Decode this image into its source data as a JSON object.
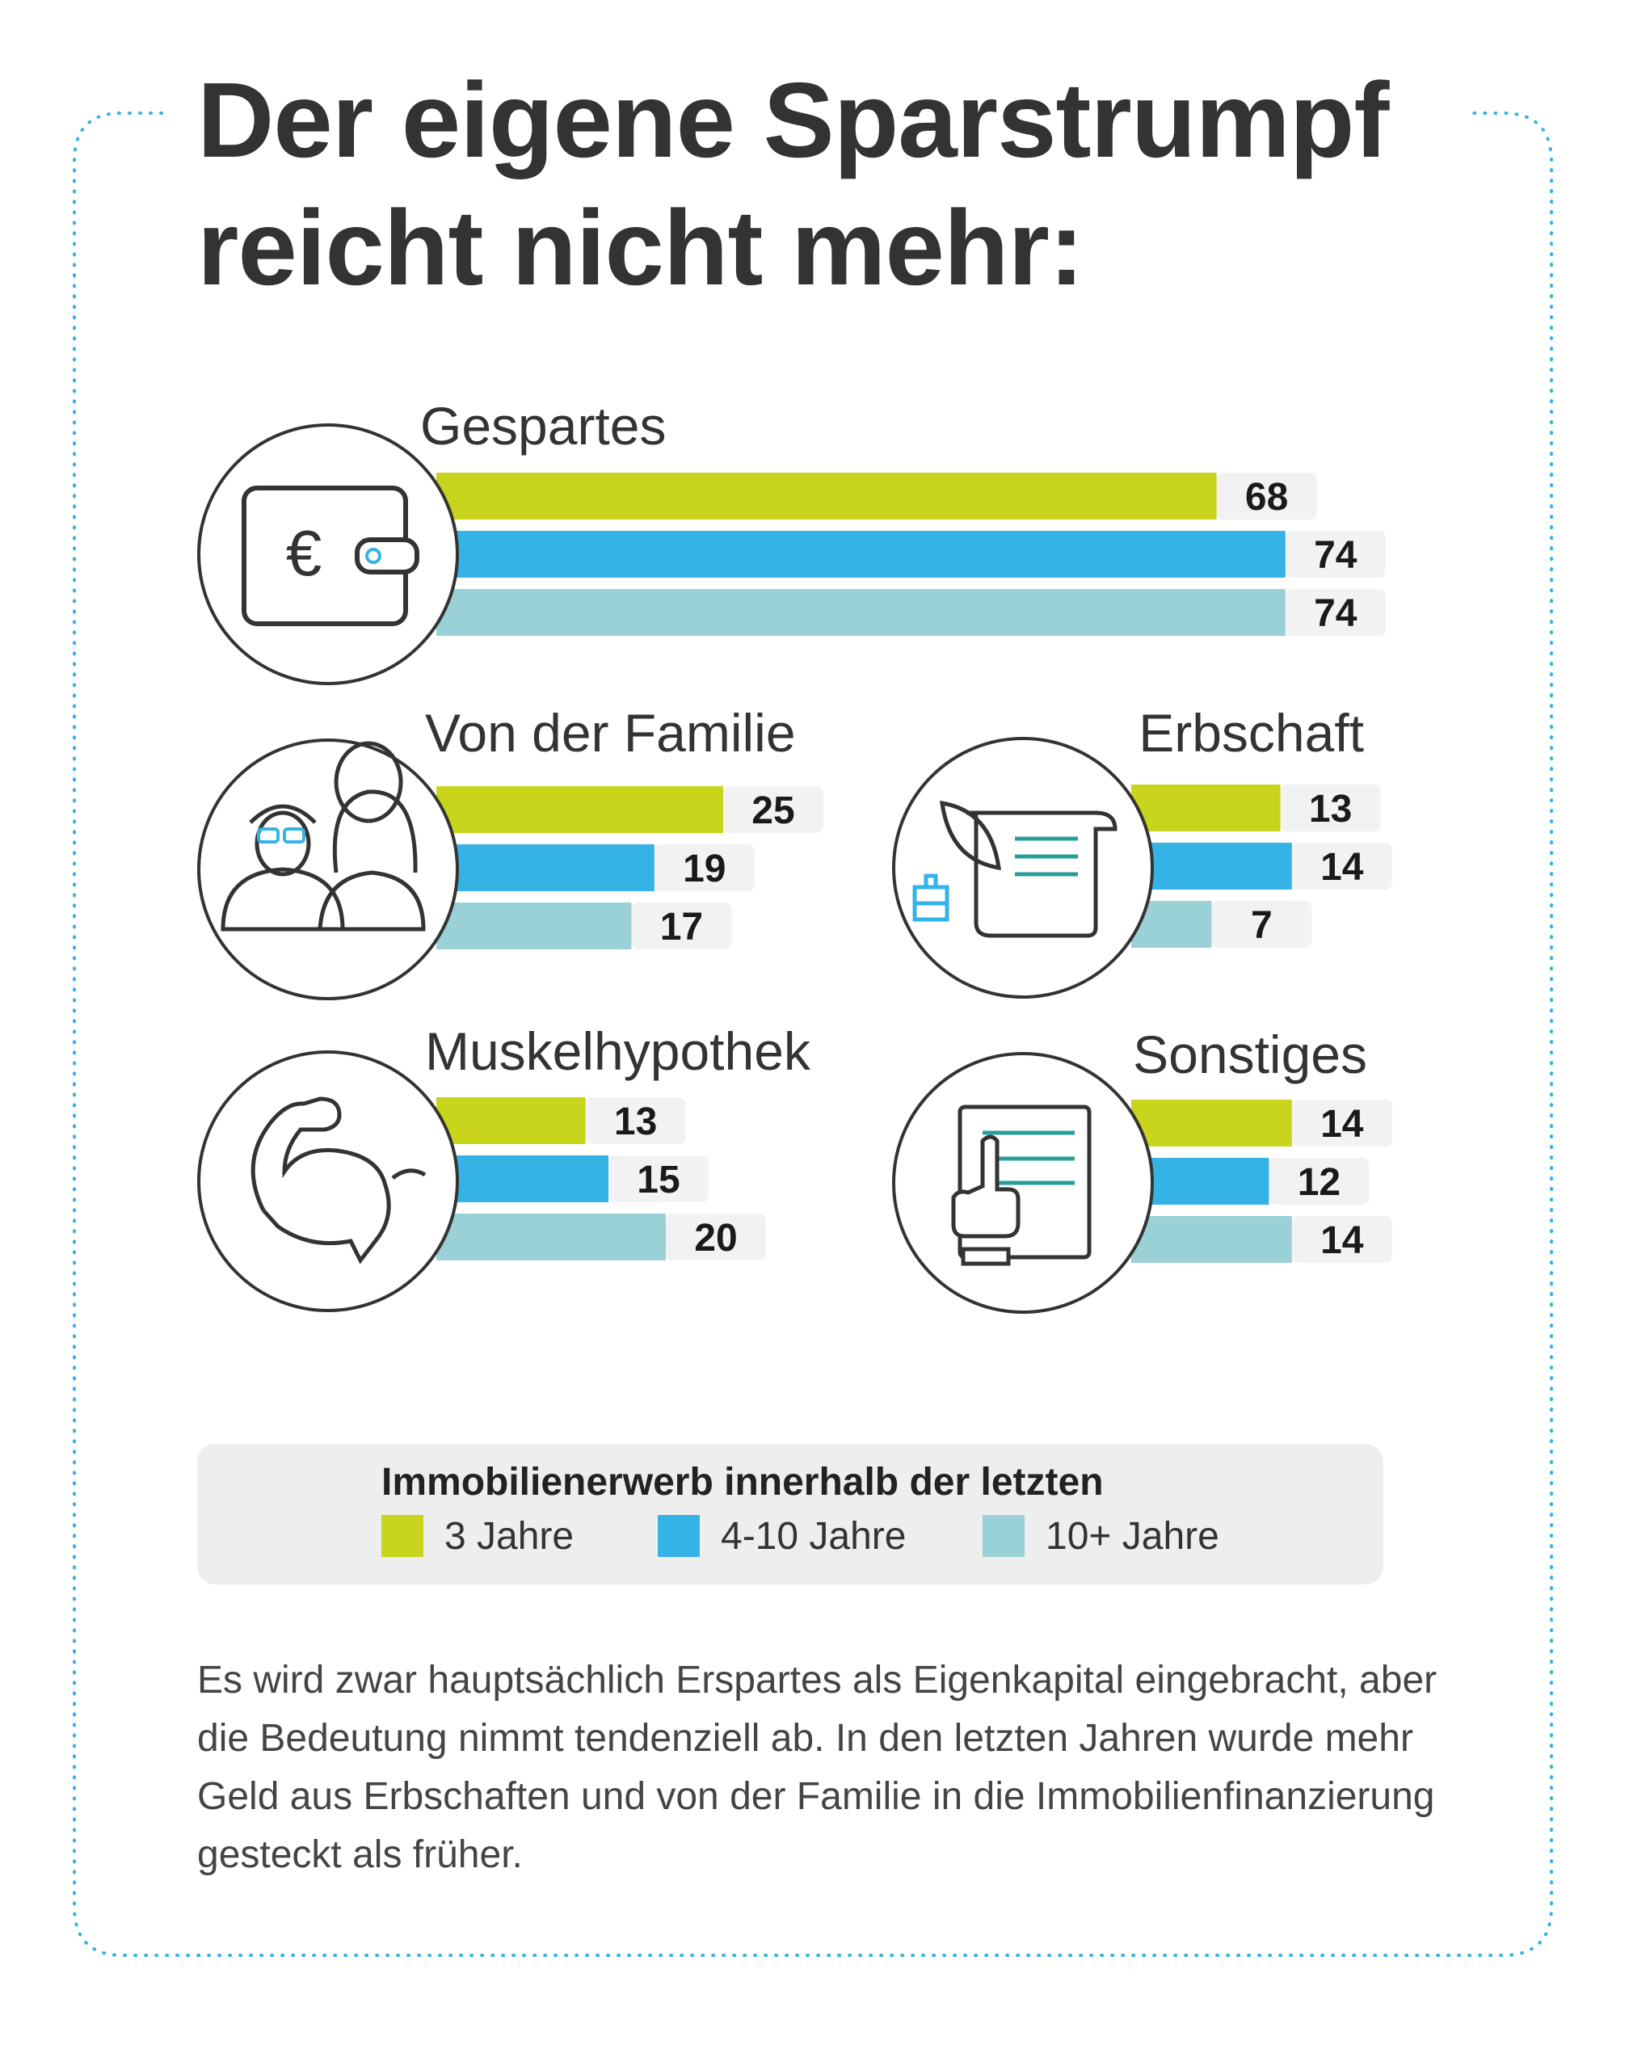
{
  "title": {
    "line1": "Der eigene Sparstrumpf",
    "line2": "reicht nicht mehr:"
  },
  "colors": {
    "years_3": "#c9d41c",
    "years_4_10": "#36b3e6",
    "years_10_plus": "#9ad1d6",
    "frame": "#36b3e6",
    "text": "#333333"
  },
  "chart_data": {
    "type": "bar",
    "orientation": "horizontal",
    "series": [
      {
        "name": "3 Jahre",
        "color": "#c9d41c"
      },
      {
        "name": "4-10 Jahre",
        "color": "#36b3e6"
      },
      {
        "name": "10+ Jahre",
        "color": "#9ad1d6"
      }
    ],
    "groups": [
      {
        "label": "Gespartes",
        "icon": "wallet-euro-icon",
        "values": [
          68,
          74,
          74
        ]
      },
      {
        "label": "Von der Familie",
        "icon": "family-icon",
        "values": [
          25,
          19,
          17
        ]
      },
      {
        "label": "Erbschaft",
        "icon": "inheritance-scroll-icon",
        "values": [
          13,
          14,
          7
        ]
      },
      {
        "label": "Muskelhypothek",
        "icon": "flexed-arm-icon",
        "values": [
          13,
          15,
          20
        ]
      },
      {
        "label": "Sonstiges",
        "icon": "document-hand-icon",
        "values": [
          14,
          12,
          14
        ]
      }
    ],
    "legend_title": "Immobilienerwerb innerhalb der letzten",
    "legend_position": "bottom"
  },
  "legend": {
    "title": "Immobilienerwerb innerhalb der letzten",
    "items": [
      "3 Jahre",
      "4-10 Jahre",
      "10+ Jahre"
    ]
  },
  "footnote": "Es wird zwar hauptsächlich Erspartes als Eigenkapital eingebracht, aber die Bedeutung nimmt tendenziell ab. In den letzten Jahren wurde mehr Geld aus Erbschaften und von der Familie in die Immobilienfinanzierung gesteckt als früher."
}
